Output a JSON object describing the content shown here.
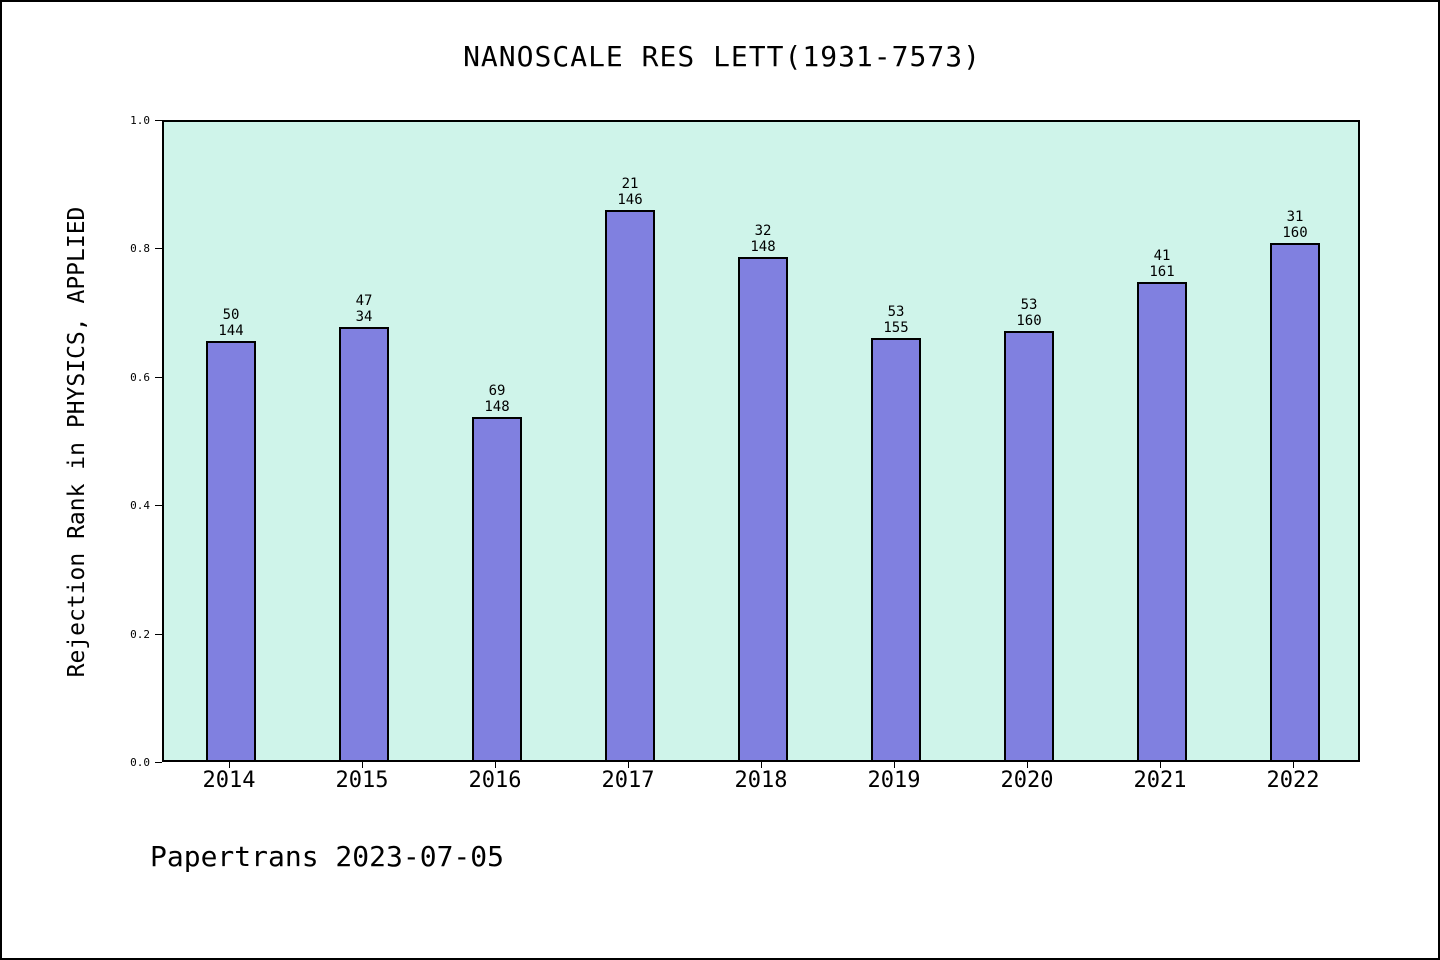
{
  "chart_data": {
    "type": "bar",
    "title": "NANOSCALE RES LETT(1931-7573)",
    "ylabel": "Rejection Rank in PHYSICS, APPLIED",
    "xlabel": "",
    "ylim": [
      0.0,
      1.0
    ],
    "yticks": [
      0.0,
      0.2,
      0.4,
      0.6,
      0.8,
      1.0
    ],
    "legend": "none",
    "grid": "off",
    "plot_bg_color": "#cff4ea",
    "bar_color": "#8080e0",
    "categories": [
      "2014",
      "2015",
      "2016",
      "2017",
      "2018",
      "2019",
      "2020",
      "2021",
      "2022"
    ],
    "series": [
      {
        "name": "Rejection Rank",
        "values": [
          0.653,
          0.674,
          0.534,
          0.856,
          0.784,
          0.658,
          0.669,
          0.745,
          0.806
        ]
      }
    ],
    "bar_top_labels": [
      "50",
      "47",
      "69",
      "21",
      "32",
      "53",
      "53",
      "41",
      "31"
    ],
    "bar_bottom_labels": [
      "144",
      "34",
      "148",
      "146",
      "148",
      "155",
      "160",
      "161",
      "160"
    ]
  },
  "footer": {
    "text": "Papertrans 2023-07-05"
  }
}
